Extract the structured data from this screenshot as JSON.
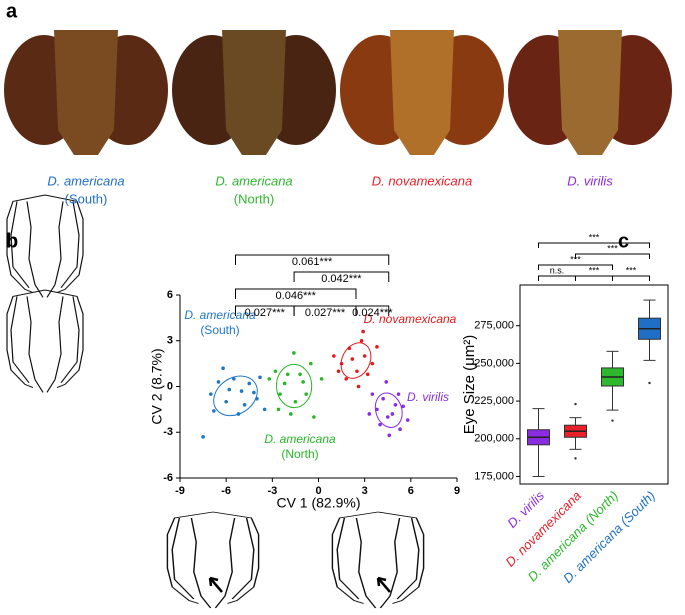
{
  "panels": [
    "a",
    "b",
    "c"
  ],
  "photos": [
    {
      "species": "D. americana",
      "region": "(South)",
      "color": "#1f6fc6"
    },
    {
      "species": "D. americana",
      "region": "(North)",
      "color": "#2db82d"
    },
    {
      "species": "D. novamexicana",
      "color": "#e8202a"
    },
    {
      "species": "D. virilis",
      "color": "#8b2be2"
    }
  ],
  "chart_data": [
    {
      "type": "scatter",
      "xlabel": "CV 1 (82.9%)",
      "ylabel": "CV 2 (8.7%)",
      "xlim": [
        -9,
        9
      ],
      "ylim": [
        -6,
        6
      ],
      "xticks": [
        -9,
        -6,
        -3,
        0,
        3,
        6,
        9
      ],
      "yticks": [
        -6,
        -3,
        0,
        3,
        6
      ],
      "series": [
        {
          "name": "D. americana",
          "sub": "(South)",
          "color": "#1f77c8",
          "x": [
            -7,
            -6.5,
            -6,
            -5.5,
            -5,
            -4.8,
            -4.5,
            -4,
            -3.8,
            -5.8,
            -6.8,
            -4.2,
            -5.2,
            -7.5,
            -3.5,
            -6.2
          ],
          "y": [
            -0.5,
            0.3,
            -1,
            0.5,
            -0.3,
            -1.2,
            0.2,
            -0.8,
            0.6,
            -0.2,
            -1.6,
            -0.4,
            -1.8,
            -3.3,
            -1.5,
            1.2
          ]
        },
        {
          "name": "D. americana",
          "sub": "(North)",
          "color": "#27b827",
          "x": [
            -2.5,
            -2,
            -1.5,
            -1,
            -0.5,
            -2.8,
            -1.8,
            -1.2,
            -0.8,
            -2.2,
            -3.2,
            -0.3,
            -1.6,
            -2.6,
            0.2
          ],
          "y": [
            -0.5,
            0.8,
            -1,
            0.3,
            1.5,
            1,
            -1.8,
            0.8,
            -0.5,
            0.2,
            0.5,
            -2,
            2.2,
            -1.5,
            0.5
          ]
        },
        {
          "name": "D. novamexicana",
          "color": "#e41a1c",
          "x": [
            1.5,
            2,
            2.5,
            3,
            3.2,
            1.8,
            2.8,
            2.2,
            3.5,
            1,
            2.6,
            3.8,
            1.3,
            2.9
          ],
          "y": [
            1.5,
            2.5,
            1,
            2,
            0.8,
            0.5,
            3,
            1.8,
            1.5,
            2,
            0,
            2.6,
            1,
            3.6
          ]
        },
        {
          "name": "D. virilis",
          "color": "#8a2be2",
          "x": [
            3.8,
            4.2,
            4.5,
            5,
            5.2,
            4,
            4.8,
            5.5,
            3.5,
            4.6,
            5.8,
            3.3,
            4.4,
            5.3
          ],
          "y": [
            -1.5,
            -0.8,
            -2,
            -1.2,
            -0.5,
            -2.5,
            -1.8,
            -1.3,
            -0.5,
            -3.2,
            -2.2,
            -1.8,
            0.3,
            -2.8
          ]
        }
      ],
      "brackets": [
        {
          "from": 0,
          "to": 3,
          "label": "0.061***"
        },
        {
          "from": 1,
          "to": 3,
          "label": "0.042***"
        },
        {
          "from": 0,
          "to": 2,
          "label": "0.046***"
        },
        {
          "from": 0,
          "to": 1,
          "label": "0.027***"
        },
        {
          "from": 1,
          "to": 2,
          "label": "0.027***"
        },
        {
          "from": 2,
          "to": 3,
          "label": "0.024***"
        }
      ]
    },
    {
      "type": "box",
      "ylabel": "Eye Size (μm²)",
      "ylim": [
        170000,
        302000
      ],
      "yticks": [
        {
          "value": 175000,
          "label": "175,000"
        },
        {
          "value": 200000,
          "label": "200,000"
        },
        {
          "value": 225000,
          "label": "225,000"
        },
        {
          "value": 250000,
          "label": "250,000"
        },
        {
          "value": 275000,
          "label": "275,000"
        }
      ],
      "categories": [
        "D. virilis",
        "D. novamexicana",
        "D. americana (North)",
        "D. americana (South)"
      ],
      "colors": [
        "#8b2be2",
        "#e8202a",
        "#2db82d",
        "#1f6fc6"
      ],
      "min": [
        175000,
        193000,
        219000,
        252000
      ],
      "q1": [
        196000,
        201000,
        235000,
        266000
      ],
      "median": [
        201000,
        205000,
        241000,
        273000
      ],
      "q3": [
        206000,
        209000,
        247000,
        280000
      ],
      "max": [
        220000,
        214000,
        258000,
        292000
      ],
      "outliers": [
        [],
        [
          187000,
          223000
        ],
        [
          212000
        ],
        [
          237000
        ]
      ],
      "brackets": [
        {
          "from": 0,
          "to": 3,
          "label": "***"
        },
        {
          "from": 1,
          "to": 3,
          "label": "***"
        },
        {
          "from": 0,
          "to": 2,
          "label": "***"
        },
        {
          "from": 0,
          "to": 1,
          "label": "n.s."
        },
        {
          "from": 1,
          "to": 2,
          "label": "***"
        },
        {
          "from": 2,
          "to": 3,
          "label": "***"
        }
      ]
    }
  ]
}
